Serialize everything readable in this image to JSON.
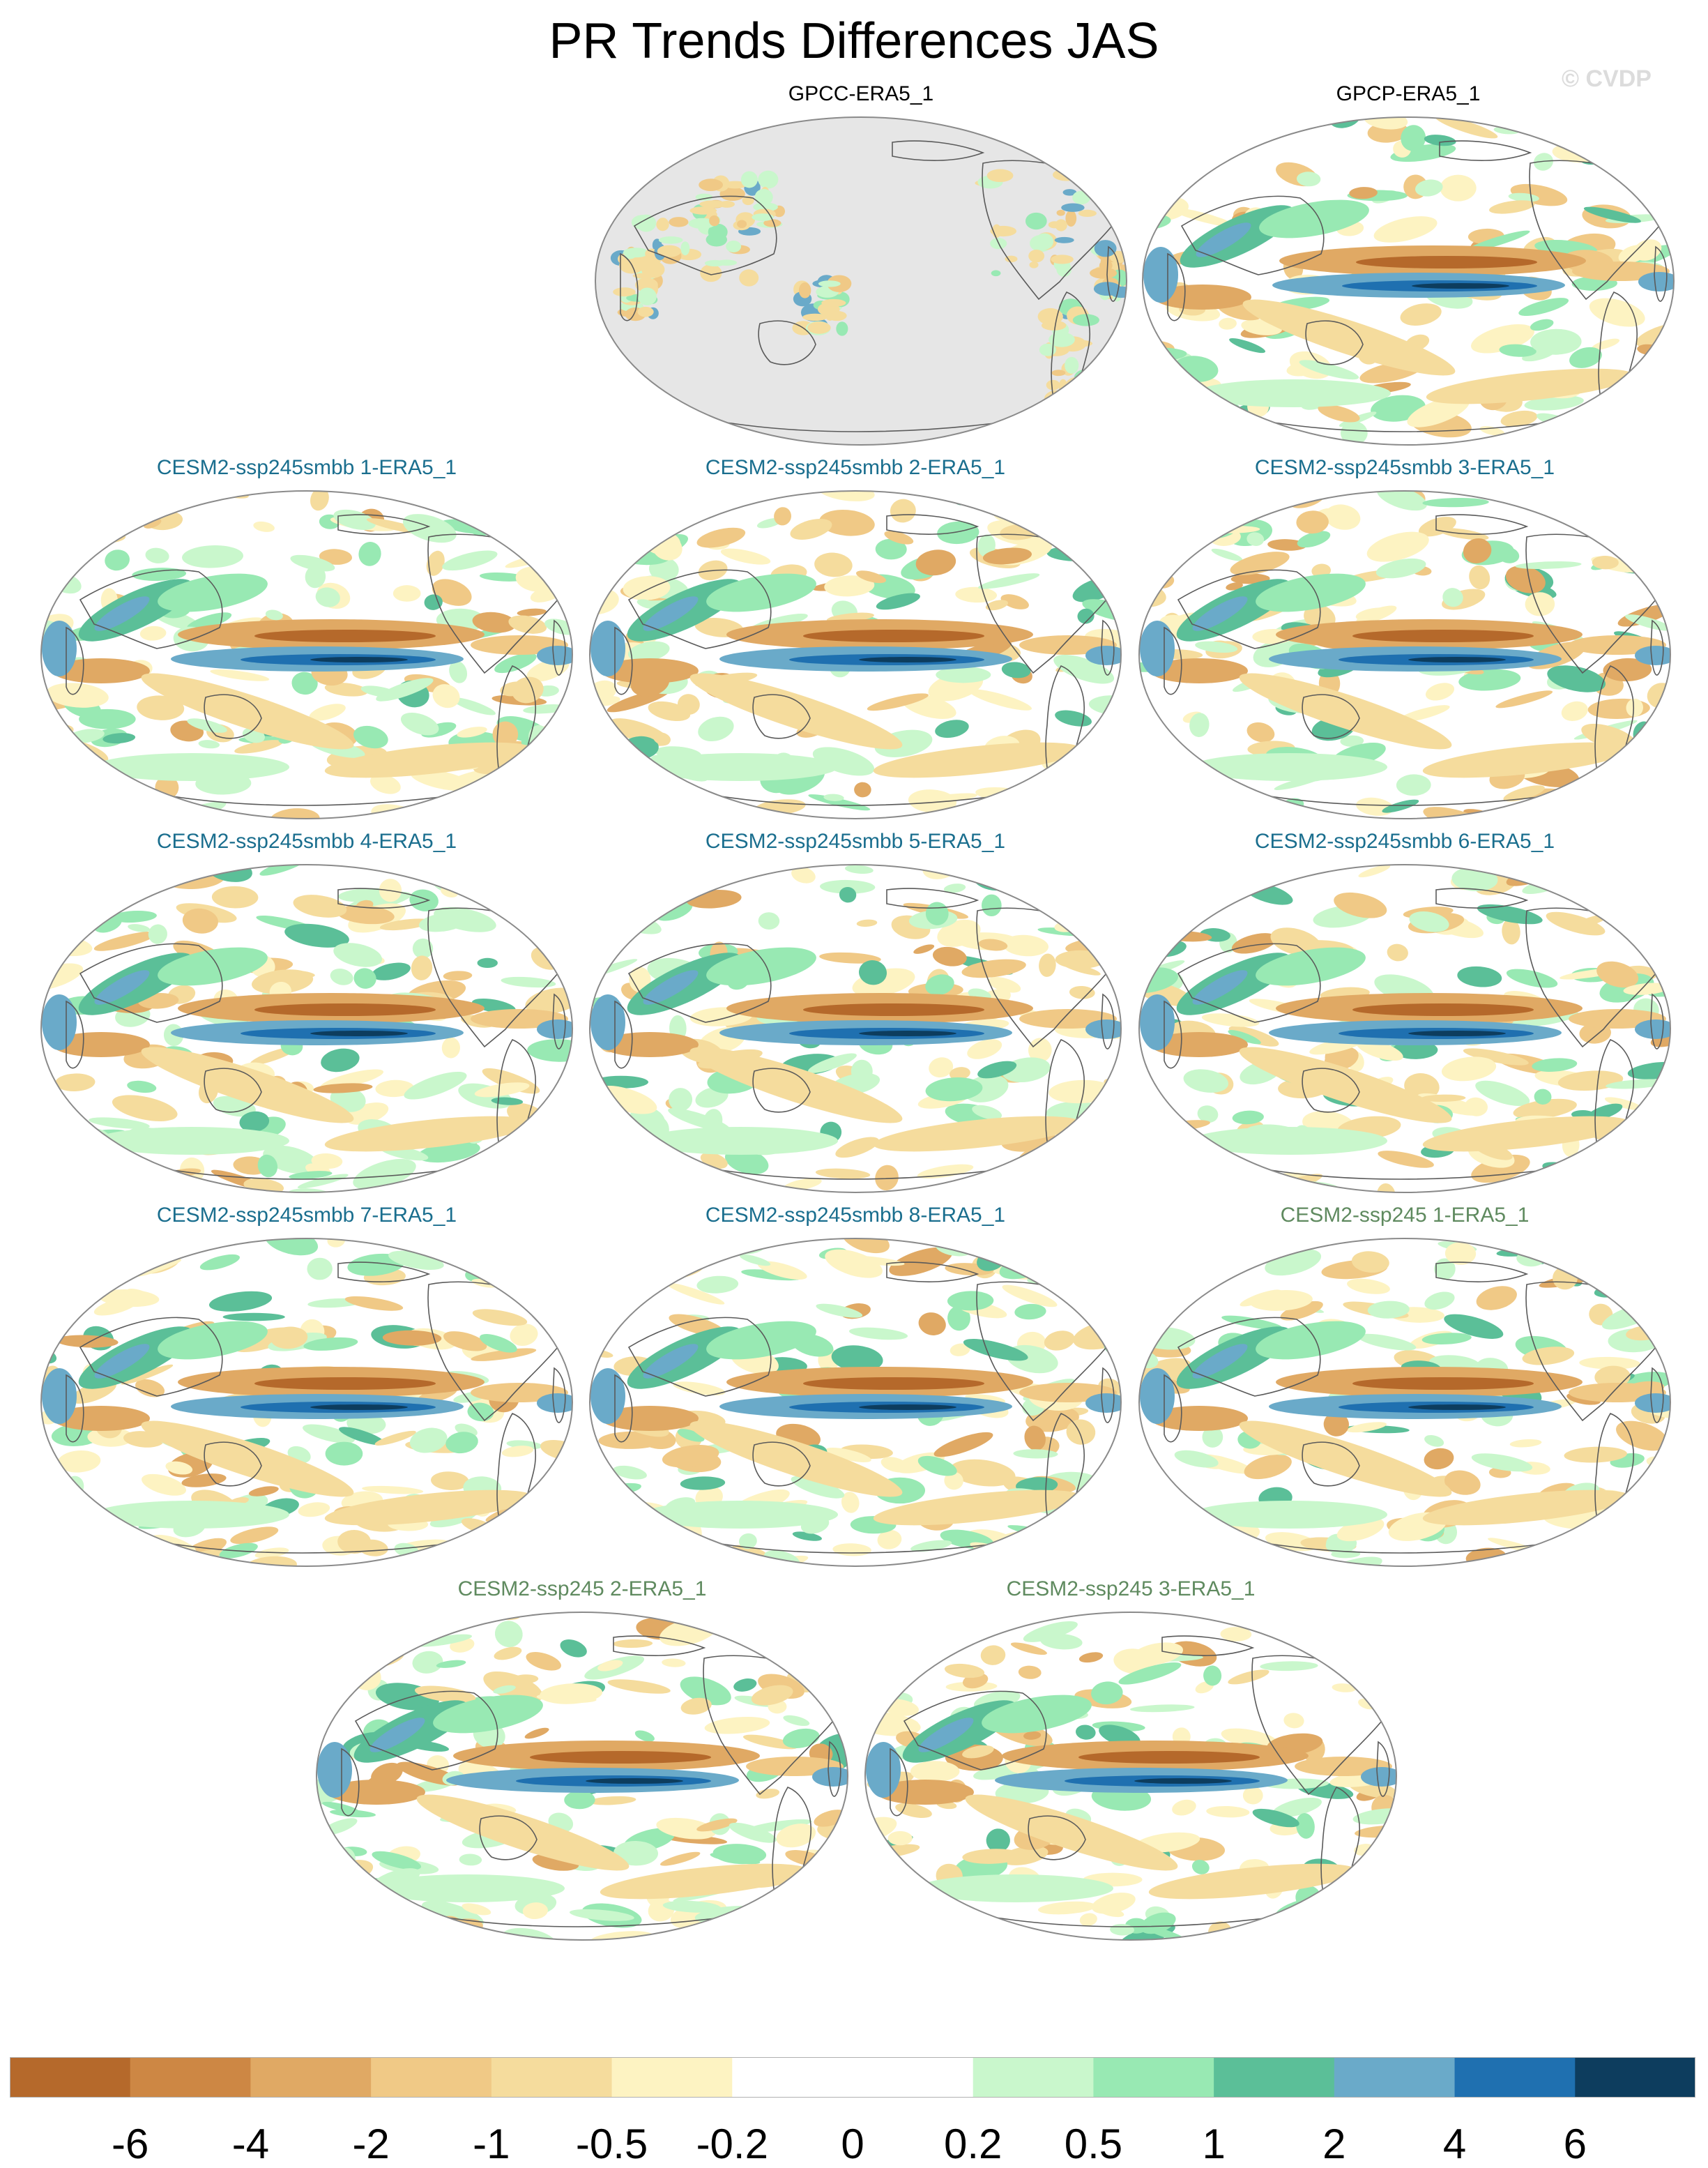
{
  "title": "PR Trends Differences JAS",
  "watermark": "© CVDP",
  "colorbar": {
    "colors": [
      "#b5692b",
      "#cd8744",
      "#e0a964",
      "#f0c986",
      "#f5dc9d",
      "#fdf3c2",
      "#ffffff",
      "#ffffff",
      "#c9f7cc",
      "#98e9b3",
      "#5bbf98",
      "#6aaac9",
      "#1f70b0",
      "#0d3d5e"
    ],
    "labels": [
      "-6",
      "-4",
      "-2",
      "-1",
      "-0.5",
      "-0.2",
      "0",
      "0.2",
      "0.5",
      "1",
      "2",
      "4",
      "6"
    ]
  },
  "panels": [
    {
      "title": "GPCC-ERA5_1",
      "color": "#000000",
      "masked": true
    },
    {
      "title": "GPCP-ERA5_1",
      "color": "#000000",
      "masked": false
    },
    {
      "title": "CESM2-ssp245smbb 1-ERA5_1",
      "color": "#1a6e8e",
      "masked": false
    },
    {
      "title": "CESM2-ssp245smbb 2-ERA5_1",
      "color": "#1a6e8e",
      "masked": false
    },
    {
      "title": "CESM2-ssp245smbb 3-ERA5_1",
      "color": "#1a6e8e",
      "masked": false
    },
    {
      "title": "CESM2-ssp245smbb 4-ERA5_1",
      "color": "#1a6e8e",
      "masked": false
    },
    {
      "title": "CESM2-ssp245smbb 5-ERA5_1",
      "color": "#1a6e8e",
      "masked": false
    },
    {
      "title": "CESM2-ssp245smbb 6-ERA5_1",
      "color": "#1a6e8e",
      "masked": false
    },
    {
      "title": "CESM2-ssp245smbb 7-ERA5_1",
      "color": "#1a6e8e",
      "masked": false
    },
    {
      "title": "CESM2-ssp245smbb 8-ERA5_1",
      "color": "#1a6e8e",
      "masked": false
    },
    {
      "title": "CESM2-ssp245 1-ERA5_1",
      "color": "#5f8a5f",
      "masked": false
    },
    {
      "title": "CESM2-ssp245 2-ERA5_1",
      "color": "#5f8a5f",
      "masked": false
    },
    {
      "title": "CESM2-ssp245 3-ERA5_1",
      "color": "#5f8a5f",
      "masked": false
    }
  ]
}
